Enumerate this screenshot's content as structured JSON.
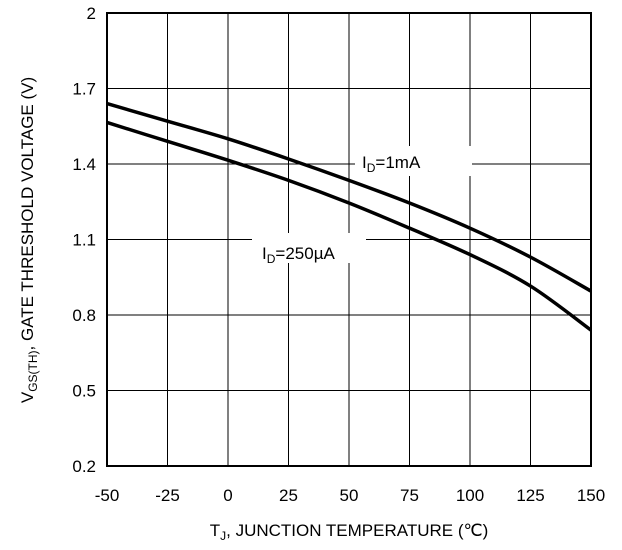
{
  "chart_data": {
    "type": "line",
    "xlabel": {
      "main": "T",
      "sub": "J",
      "rest": ", JUNCTION TEMPERATURE (℃)"
    },
    "ylabel": {
      "main": "V",
      "sub": "GS(TH)",
      "rest": ", GATE THRESHOLD VOLTAGE (V)"
    },
    "xlim": [
      -50,
      150
    ],
    "ylim": [
      0.2,
      2.0
    ],
    "xticks": [
      "-50",
      "-25",
      "0",
      "25",
      "50",
      "75",
      "100",
      "125",
      "150"
    ],
    "yticks": [
      "0.2",
      "0.5",
      "0.8",
      "1.1",
      "1.4",
      "1.7",
      "2"
    ],
    "grid": true,
    "series": [
      {
        "name": {
          "main": "I",
          "sub": "D",
          "rest": "=1mA"
        },
        "x": [
          -50,
          -25,
          0,
          25,
          50,
          75,
          100,
          125,
          150
        ],
        "y": [
          1.64,
          1.57,
          1.5,
          1.42,
          1.335,
          1.245,
          1.145,
          1.03,
          0.895
        ]
      },
      {
        "name": {
          "main": "I",
          "sub": "D",
          "rest": "=250µA"
        },
        "x": [
          -50,
          -25,
          0,
          25,
          50,
          75,
          100,
          125,
          150
        ],
        "y": [
          1.565,
          1.49,
          1.415,
          1.335,
          1.245,
          1.145,
          1.04,
          0.915,
          0.74
        ]
      }
    ]
  }
}
